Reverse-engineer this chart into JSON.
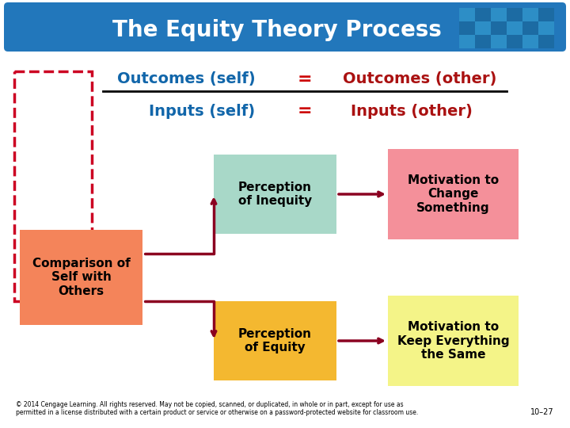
{
  "title": "The Equity Theory Process",
  "title_bg_color": "#2277BB",
  "title_text_color": "#FFFFFF",
  "bg_color": "#FFFFFF",
  "fraction_line_color": "#000000",
  "arrow_color": "#8B0020",
  "dashed_border_color": "#CC0022",
  "self_text_color": "#1166AA",
  "other_text_color": "#AA1111",
  "equals_color": "#CC0000",
  "outcomes_self": "Outcomes (self)",
  "outcomes_other": "Outcomes (other)",
  "inputs_self": "Inputs (self)",
  "inputs_other": "Inputs (other)",
  "equals1": "=",
  "equals2": "=",
  "box1_text": "Comparison of\nSelf with\nOthers",
  "box1_color": "#F4845A",
  "box2_text": "Perception\nof Inequity",
  "box2_color": "#A8D8C8",
  "box3_text": "Motivation to\nChange\nSomething",
  "box3_color": "#F4909A",
  "box4_text": "Perception\nof Equity",
  "box4_color": "#F4B830",
  "box5_text": "Motivation to\nKeep Everything\nthe Same",
  "box5_color": "#F4F488",
  "footer_text": "© 2014 Cengage Learning. All rights reserved. May not be copied, scanned, or duplicated, in whole or in part, except for use as\npermitted in a license distributed with a certain product or service or otherwise on a password-protected website for classroom use.",
  "page_num": "10–27"
}
